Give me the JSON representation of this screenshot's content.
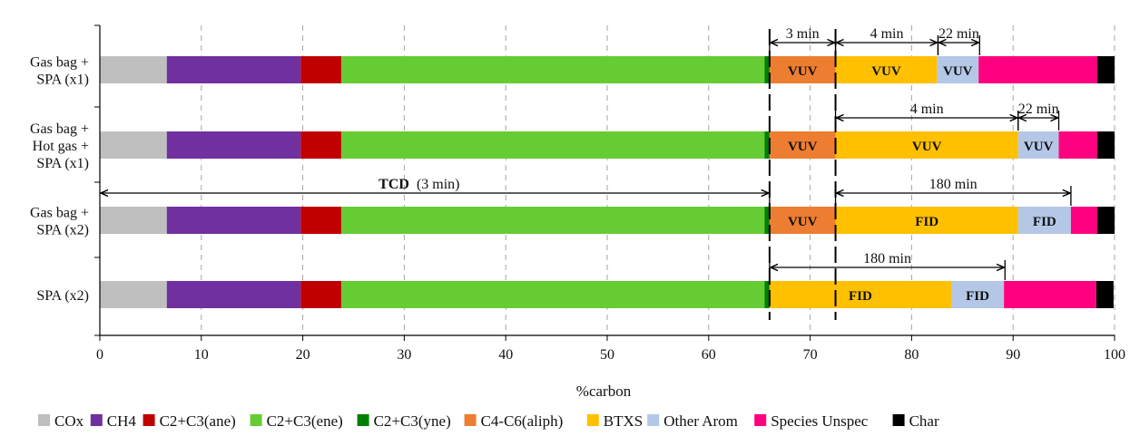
{
  "chart_data": {
    "type": "bar",
    "orientation": "horizontal",
    "stacked": true,
    "title": "",
    "xlabel": "%carbon",
    "ylabel": "",
    "xlim": [
      0,
      100
    ],
    "xticks": [
      0,
      10,
      20,
      30,
      40,
      50,
      60,
      70,
      80,
      90,
      100
    ],
    "grid": "vertical dashed",
    "legend_position": "bottom",
    "categories": [
      [
        "Gas bag +",
        "SPA (x1)"
      ],
      [
        "Gas bag +",
        "Hot gas +",
        "SPA (x1)"
      ],
      [
        "Gas bag +",
        "SPA (x2)"
      ],
      [
        "SPA (x2)"
      ]
    ],
    "series": [
      {
        "name": "COx",
        "color": "#bfbfbf",
        "values": [
          6.6,
          6.6,
          6.6,
          6.6
        ]
      },
      {
        "name": "CH4",
        "color": "#7030a0",
        "values": [
          13.2,
          13.2,
          13.2,
          13.2
        ]
      },
      {
        "name": "C2+C3(ane)",
        "color": "#c00000",
        "values": [
          4.0,
          4.0,
          4.0,
          4.0
        ]
      },
      {
        "name": "C2+C3(ene)",
        "color": "#66cc33",
        "values": [
          41.7,
          41.7,
          41.7,
          41.7
        ]
      },
      {
        "name": "C2+C3(yne)",
        "color": "#008000",
        "values": [
          0.5,
          0.5,
          0.5,
          0.5
        ]
      },
      {
        "name": "C4-C6(aliph)",
        "color": "#ed7d31",
        "values": [
          6.5,
          6.5,
          6.5,
          0
        ]
      },
      {
        "name": "BTXS",
        "color": "#ffc000",
        "values": [
          10.0,
          18.0,
          18.0,
          17.9
        ]
      },
      {
        "name": "Other Arom",
        "color": "#b4c7e7",
        "values": [
          4.1,
          4.0,
          5.2,
          5.2
        ]
      },
      {
        "name": "Species Unspec",
        "color": "#ff0080",
        "values": [
          11.7,
          3.8,
          2.6,
          9.1
        ]
      },
      {
        "name": "Char",
        "color": "#000000",
        "values": [
          1.7,
          1.7,
          1.7,
          1.7
        ]
      }
    ],
    "segment_labels": [
      {
        "row": 0,
        "series": 5,
        "text": "VUV"
      },
      {
        "row": 0,
        "series": 6,
        "text": "VUV"
      },
      {
        "row": 0,
        "series": 7,
        "text": "VUV"
      },
      {
        "row": 1,
        "series": 5,
        "text": "VUV"
      },
      {
        "row": 1,
        "series": 6,
        "text": "VUV"
      },
      {
        "row": 1,
        "series": 7,
        "text": "VUV"
      },
      {
        "row": 2,
        "series": 5,
        "text": "VUV"
      },
      {
        "row": 2,
        "series": 6,
        "text": "FID"
      },
      {
        "row": 2,
        "series": 7,
        "text": "FID"
      },
      {
        "row": 3,
        "series": 6,
        "text": "FID"
      },
      {
        "row": 3,
        "series": 7,
        "text": "FID"
      }
    ],
    "dashed_lines": [
      66,
      72.5
    ],
    "annotations": [
      {
        "from": 66,
        "to": 72.5,
        "row": 0,
        "text": "3 min",
        "bold": false
      },
      {
        "from": 72.5,
        "to": 82.6,
        "row": 0,
        "text": "4 min",
        "bold": false
      },
      {
        "from": 82.6,
        "to": 86.7,
        "row": 0,
        "text": "22 min",
        "bold": false
      },
      {
        "from": 72.5,
        "to": 90.5,
        "row": 1,
        "text": "4 min",
        "bold": false
      },
      {
        "from": 90.5,
        "to": 94.5,
        "row": 1,
        "text": "22 min",
        "bold": false
      },
      {
        "from": 0,
        "to": 66,
        "row": 2,
        "text": "TCD",
        "text2": "(3 min)",
        "bold": true
      },
      {
        "from": 72.5,
        "to": 95.7,
        "row": 2,
        "text": "180 min",
        "bold": false
      },
      {
        "from": 66,
        "to": 89.2,
        "row": 3,
        "text": "180 min",
        "bold": false
      }
    ]
  }
}
